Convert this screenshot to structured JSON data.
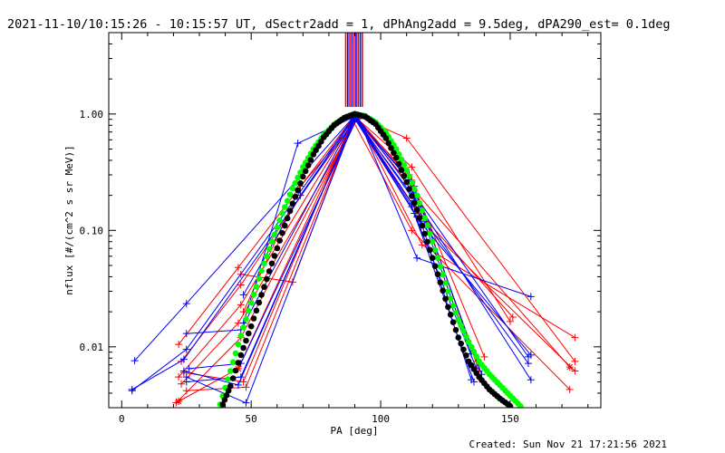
{
  "header": {
    "title": "2021-11-10/10:15:26 - 10:15:57 UT, dSectr2add = 1, dPhAng2add = 9.5deg, dPA290_est=  0.1deg"
  },
  "footer": {
    "created": "Created: Sun Nov 21 17:21:56 2021"
  },
  "chart_data": {
    "type": "line",
    "xlabel": "PA [deg]",
    "ylabel": "nflux [#/(cm^2 s sr MeV)]",
    "xlim": [
      -5,
      185
    ],
    "ylim": [
      0.003,
      5
    ],
    "y_scale": "log",
    "x_ticks": [
      0,
      50,
      100,
      150
    ],
    "x_tick_labels": [
      "0",
      "50",
      "100",
      "150"
    ],
    "y_ticks": [
      0.01,
      0.1,
      1.0
    ],
    "y_tick_labels": [
      "0.01",
      "0.10",
      "1.00"
    ],
    "colors": {
      "red": "#ff0000",
      "blue": "#0000ff",
      "fit_green": "#00ff00",
      "fit_black": "#000000"
    },
    "vertical_markers": {
      "x": [
        86.5,
        87.3,
        88.1,
        88.9,
        89.7,
        90.5,
        91.3,
        92.1,
        92.9
      ],
      "colors": [
        "#ff0000",
        "#0000ff",
        "#ff0000",
        "#0000ff",
        "#ff0000",
        "#0000ff",
        "#ff0000",
        "#0000ff",
        "#ff0000"
      ],
      "y_from": 1.15,
      "y_to": 5
    },
    "series": [
      {
        "color": "#ff0000",
        "marker": "+",
        "x": [
          22,
          45,
          90,
          112,
          137
        ],
        "y": [
          0.0105,
          0.048,
          0.97,
          0.27,
          0.0075
        ]
      },
      {
        "color": "#ff0000",
        "marker": "+",
        "x": [
          23,
          46,
          90,
          113,
          138
        ],
        "y": [
          0.0075,
          0.034,
          0.95,
          0.24,
          0.0062
        ]
      },
      {
        "color": "#ff0000",
        "marker": "+",
        "x": [
          22,
          46,
          90,
          111,
          140
        ],
        "y": [
          0.0055,
          0.023,
          0.93,
          0.3,
          0.0082
        ]
      },
      {
        "color": "#ff0000",
        "marker": "+",
        "x": [
          23,
          45,
          91,
          112,
          150
        ],
        "y": [
          0.0048,
          0.016,
          0.91,
          0.35,
          0.0165
        ]
      },
      {
        "color": "#ff0000",
        "marker": "+",
        "x": [
          21,
          46,
          91,
          110,
          175
        ],
        "y": [
          0.0033,
          0.012,
          0.96,
          0.62,
          0.0075
        ]
      },
      {
        "color": "#ff0000",
        "marker": "*",
        "x": [
          22,
          45,
          90,
          113,
          173
        ],
        "y": [
          0.0034,
          0.0065,
          0.94,
          0.22,
          0.0067
        ]
      },
      {
        "color": "#ff0000",
        "marker": "+",
        "x": [
          25,
          48,
          90,
          114,
          175
        ],
        "y": [
          0.0042,
          0.0045,
          0.92,
          0.13,
          0.0062
        ]
      },
      {
        "color": "#ff0000",
        "marker": "+",
        "x": [
          24,
          47,
          89,
          112,
          173
        ],
        "y": [
          0.006,
          0.005,
          0.9,
          0.1,
          0.0043
        ]
      },
      {
        "color": "#ff0000",
        "marker": "+",
        "x": [
          46,
          66,
          90,
          113,
          151
        ],
        "y": [
          0.042,
          0.036,
          0.95,
          0.16,
          0.018
        ]
      },
      {
        "color": "#ff0000",
        "marker": "+",
        "x": [
          47,
          69,
          91,
          116,
          175
        ],
        "y": [
          0.02,
          0.24,
          0.9,
          0.075,
          0.012
        ]
      },
      {
        "color": "#0000ff",
        "marker": "+",
        "x": [
          5,
          25,
          90,
          112,
          136
        ],
        "y": [
          0.0076,
          0.0235,
          0.97,
          0.16,
          0.005
        ]
      },
      {
        "color": "#0000ff",
        "marker": "+",
        "x": [
          4,
          25,
          90,
          113,
          137
        ],
        "y": [
          0.0042,
          0.0095,
          0.96,
          0.14,
          0.0065
        ]
      },
      {
        "color": "#0000ff",
        "marker": "+",
        "x": [
          4,
          24,
          91,
          114,
          158
        ],
        "y": [
          0.0043,
          0.0078,
          0.95,
          0.058,
          0.027
        ]
      },
      {
        "color": "#0000ff",
        "marker": "+",
        "x": [
          25,
          46,
          90,
          111,
          135
        ],
        "y": [
          0.013,
          0.014,
          0.94,
          0.27,
          0.0087
        ]
      },
      {
        "color": "#0000ff",
        "marker": "+",
        "x": [
          24,
          45,
          90,
          112,
          157
        ],
        "y": [
          0.0062,
          0.0047,
          0.93,
          0.17,
          0.0072
        ]
      },
      {
        "color": "#0000ff",
        "marker": "+",
        "x": [
          25,
          48,
          90,
          115,
          158
        ],
        "y": [
          0.0055,
          0.0033,
          0.91,
          0.12,
          0.0085
        ]
      },
      {
        "color": "#0000ff",
        "marker": "+",
        "x": [
          25,
          46,
          90,
          113,
          158
        ],
        "y": [
          0.005,
          0.0055,
          0.92,
          0.19,
          0.0052
        ]
      },
      {
        "color": "#0000ff",
        "marker": "+",
        "x": [
          26,
          46,
          91,
          112,
          157
        ],
        "y": [
          0.0065,
          0.0072,
          0.93,
          0.22,
          0.0082
        ]
      },
      {
        "color": "#0000ff",
        "marker": "+",
        "x": [
          47,
          68,
          90,
          113,
          135
        ],
        "y": [
          0.016,
          0.56,
          0.95,
          0.18,
          0.0052
        ]
      },
      {
        "color": "#0000ff",
        "marker": "+",
        "x": [
          47,
          69,
          90,
          112,
          139
        ],
        "y": [
          0.028,
          0.2,
          0.94,
          0.26,
          0.0058
        ]
      }
    ],
    "fits": [
      {
        "color": "#00ff00",
        "marker": "dot",
        "x": [
          38,
          42,
          46,
          50,
          54,
          58,
          62,
          66,
          70,
          74,
          78,
          82,
          86,
          90,
          94,
          98,
          102,
          106,
          110,
          114,
          118,
          122,
          126,
          130,
          134,
          138,
          142,
          146,
          150,
          154
        ],
        "y": [
          0.0032,
          0.0062,
          0.0125,
          0.024,
          0.045,
          0.08,
          0.14,
          0.23,
          0.35,
          0.5,
          0.66,
          0.81,
          0.93,
          1.0,
          0.96,
          0.85,
          0.69,
          0.5,
          0.33,
          0.2,
          0.11,
          0.058,
          0.03,
          0.017,
          0.011,
          0.0075,
          0.0058,
          0.0047,
          0.0038,
          0.0031
        ]
      },
      {
        "color": "#000000",
        "marker": "dot",
        "x": [
          39,
          42,
          46,
          50,
          54,
          58,
          62,
          66,
          70,
          74,
          78,
          82,
          86,
          90,
          94,
          98,
          102,
          106,
          110,
          114,
          118,
          122,
          126,
          130,
          134,
          138,
          142,
          146,
          150
        ],
        "y": [
          0.0032,
          0.0046,
          0.0085,
          0.015,
          0.028,
          0.052,
          0.095,
          0.17,
          0.29,
          0.45,
          0.63,
          0.8,
          0.93,
          1.0,
          0.95,
          0.82,
          0.62,
          0.42,
          0.26,
          0.15,
          0.08,
          0.042,
          0.022,
          0.012,
          0.0075,
          0.0055,
          0.0043,
          0.0036,
          0.0031
        ]
      }
    ]
  }
}
